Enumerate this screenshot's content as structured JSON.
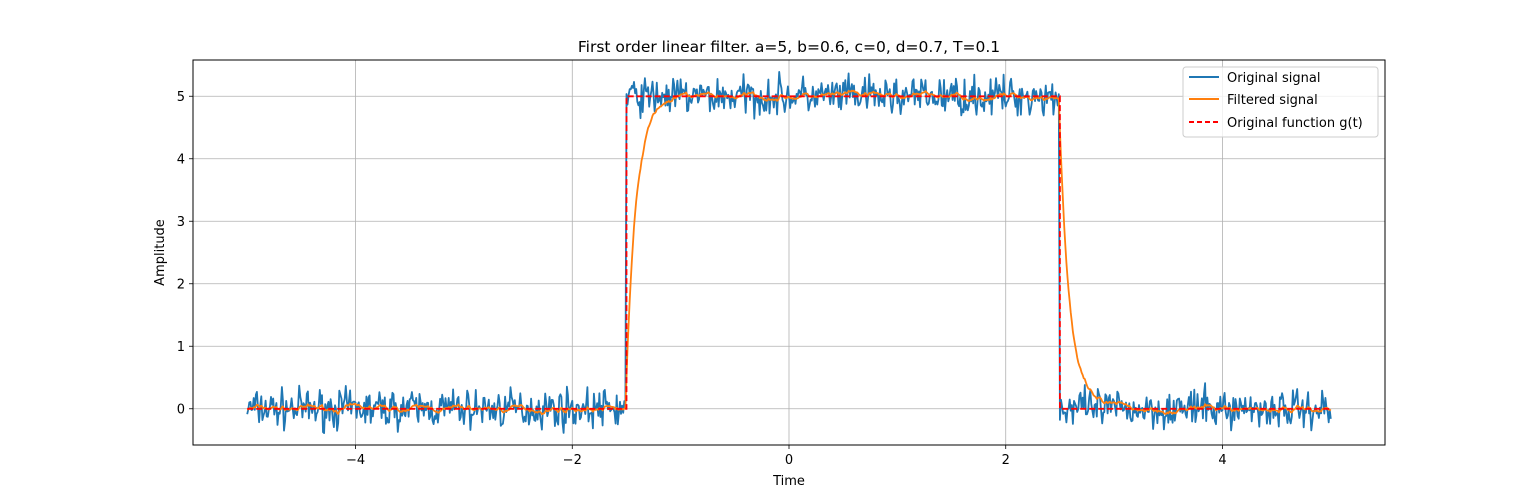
{
  "chart_data": {
    "type": "line",
    "title": "First order linear filter. a=5, b=0.6, c=0, d=0.7, T=0.1",
    "xlabel": "Time",
    "ylabel": "Amplitude",
    "xlim": [
      -5.5,
      5.5
    ],
    "ylim": [
      -0.58,
      5.58
    ],
    "xticks": [
      -4,
      -2,
      0,
      2,
      4
    ],
    "xtick_labels": [
      "−4",
      "−2",
      "0",
      "2",
      "4"
    ],
    "yticks": [
      0,
      1,
      2,
      3,
      4,
      5
    ],
    "ytick_labels": [
      "0",
      "1",
      "2",
      "3",
      "4",
      "5"
    ],
    "grid": true,
    "legend_position": "top-right",
    "pulse": {
      "start": -1.5,
      "end": 2.5,
      "low": 0,
      "high": 5
    },
    "series": [
      {
        "name": "Original signal",
        "color": "#1f77b4",
        "style": "solid",
        "noise_amplitude": 0.3,
        "x_range": [
          -5,
          5
        ]
      },
      {
        "name": "Filtered signal",
        "color": "#ff7f0e",
        "style": "solid",
        "x_range": [
          -5,
          5
        ]
      },
      {
        "name": "Original function g(t)",
        "color": "#ff0000",
        "style": "dashed",
        "x_range": [
          -5,
          5
        ]
      }
    ]
  }
}
